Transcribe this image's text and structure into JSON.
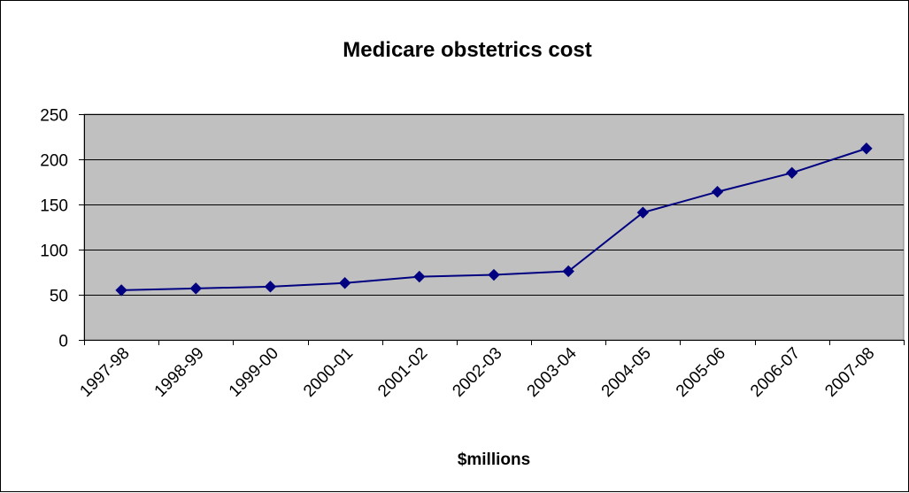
{
  "chart_data": {
    "type": "line",
    "title": "Medicare obstetrics cost",
    "xlabel": "$millions",
    "ylabel": "",
    "categories": [
      "1997-98",
      "1998-99",
      "1999-00",
      "2000-01",
      "2001-02",
      "2002-03",
      "2003-04",
      "2004-05",
      "2005-06",
      "2006-07",
      "2007-08"
    ],
    "series": [
      {
        "values": [
          55,
          57,
          59,
          63,
          70,
          72,
          76,
          141,
          164,
          185,
          212
        ]
      }
    ],
    "ylim": [
      0,
      250
    ],
    "yticks": [
      0,
      50,
      100,
      150,
      200,
      250
    ],
    "grid": true,
    "legend": "none",
    "colors": {
      "plot_background": "#c0c0c0",
      "line": "#000080",
      "marker": "#000080",
      "gridline": "#000000"
    }
  }
}
